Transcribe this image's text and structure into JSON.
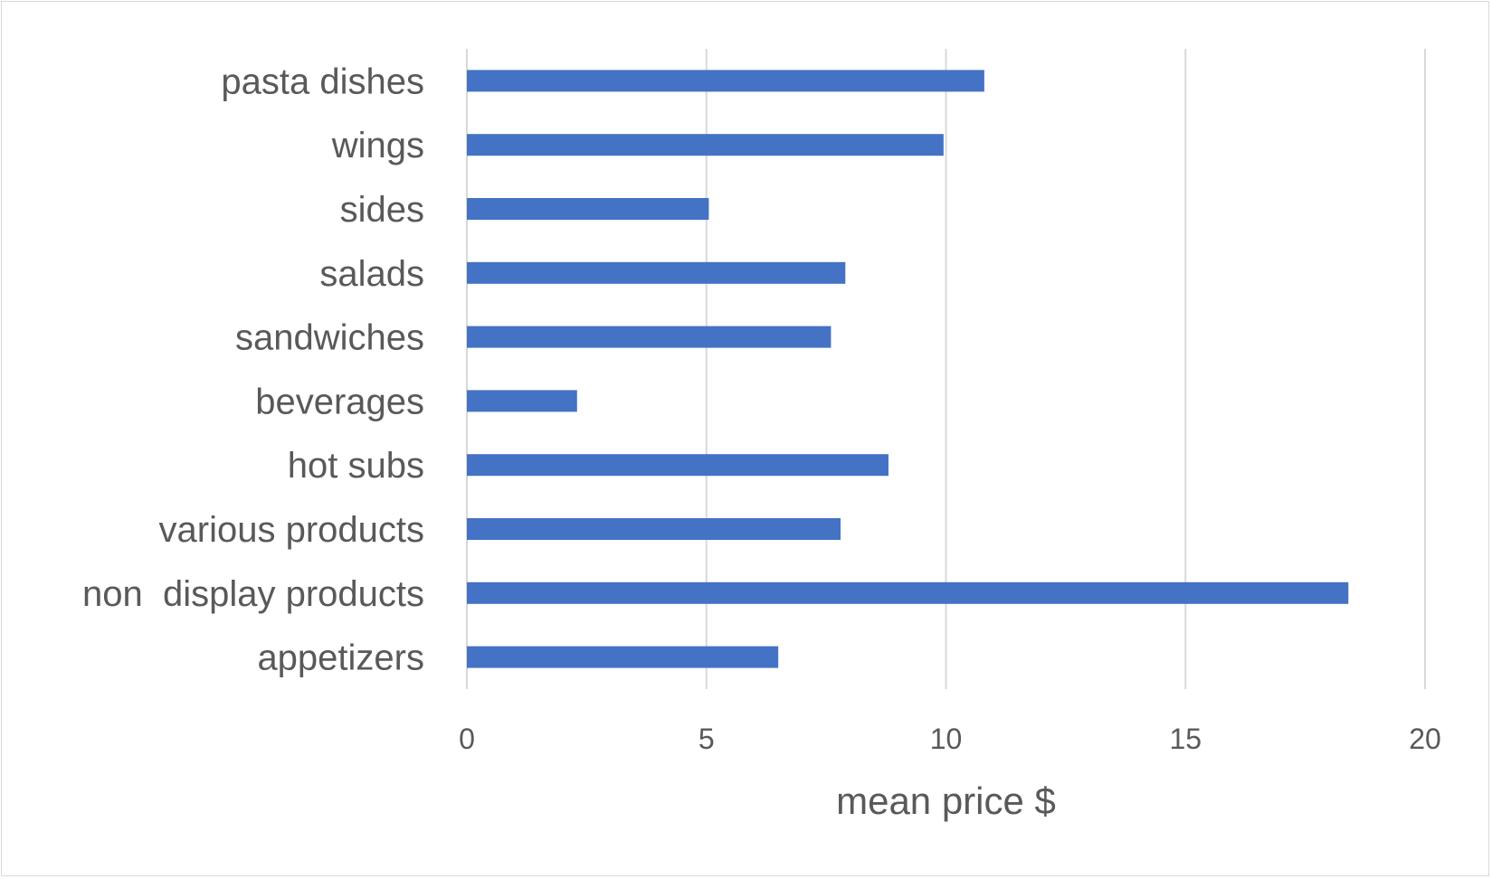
{
  "chart_data": {
    "type": "bar",
    "orientation": "horizontal",
    "categories": [
      "appetizers",
      "non  display products",
      "various products",
      "hot subs",
      "beverages",
      "sandwiches",
      "salads",
      "sides",
      "wings",
      "pasta dishes"
    ],
    "series": [
      {
        "values": [
          6.5,
          18.4,
          7.8,
          8.8,
          2.3,
          7.6,
          7.9,
          5.05,
          9.95,
          10.8
        ],
        "color": "#4472c4"
      }
    ],
    "xlabel": "mean price $",
    "ylabel": "",
    "xlim": [
      0,
      20
    ],
    "xticks": [
      0,
      5,
      10,
      15,
      20
    ],
    "grid": "vertical",
    "legend": "none"
  }
}
